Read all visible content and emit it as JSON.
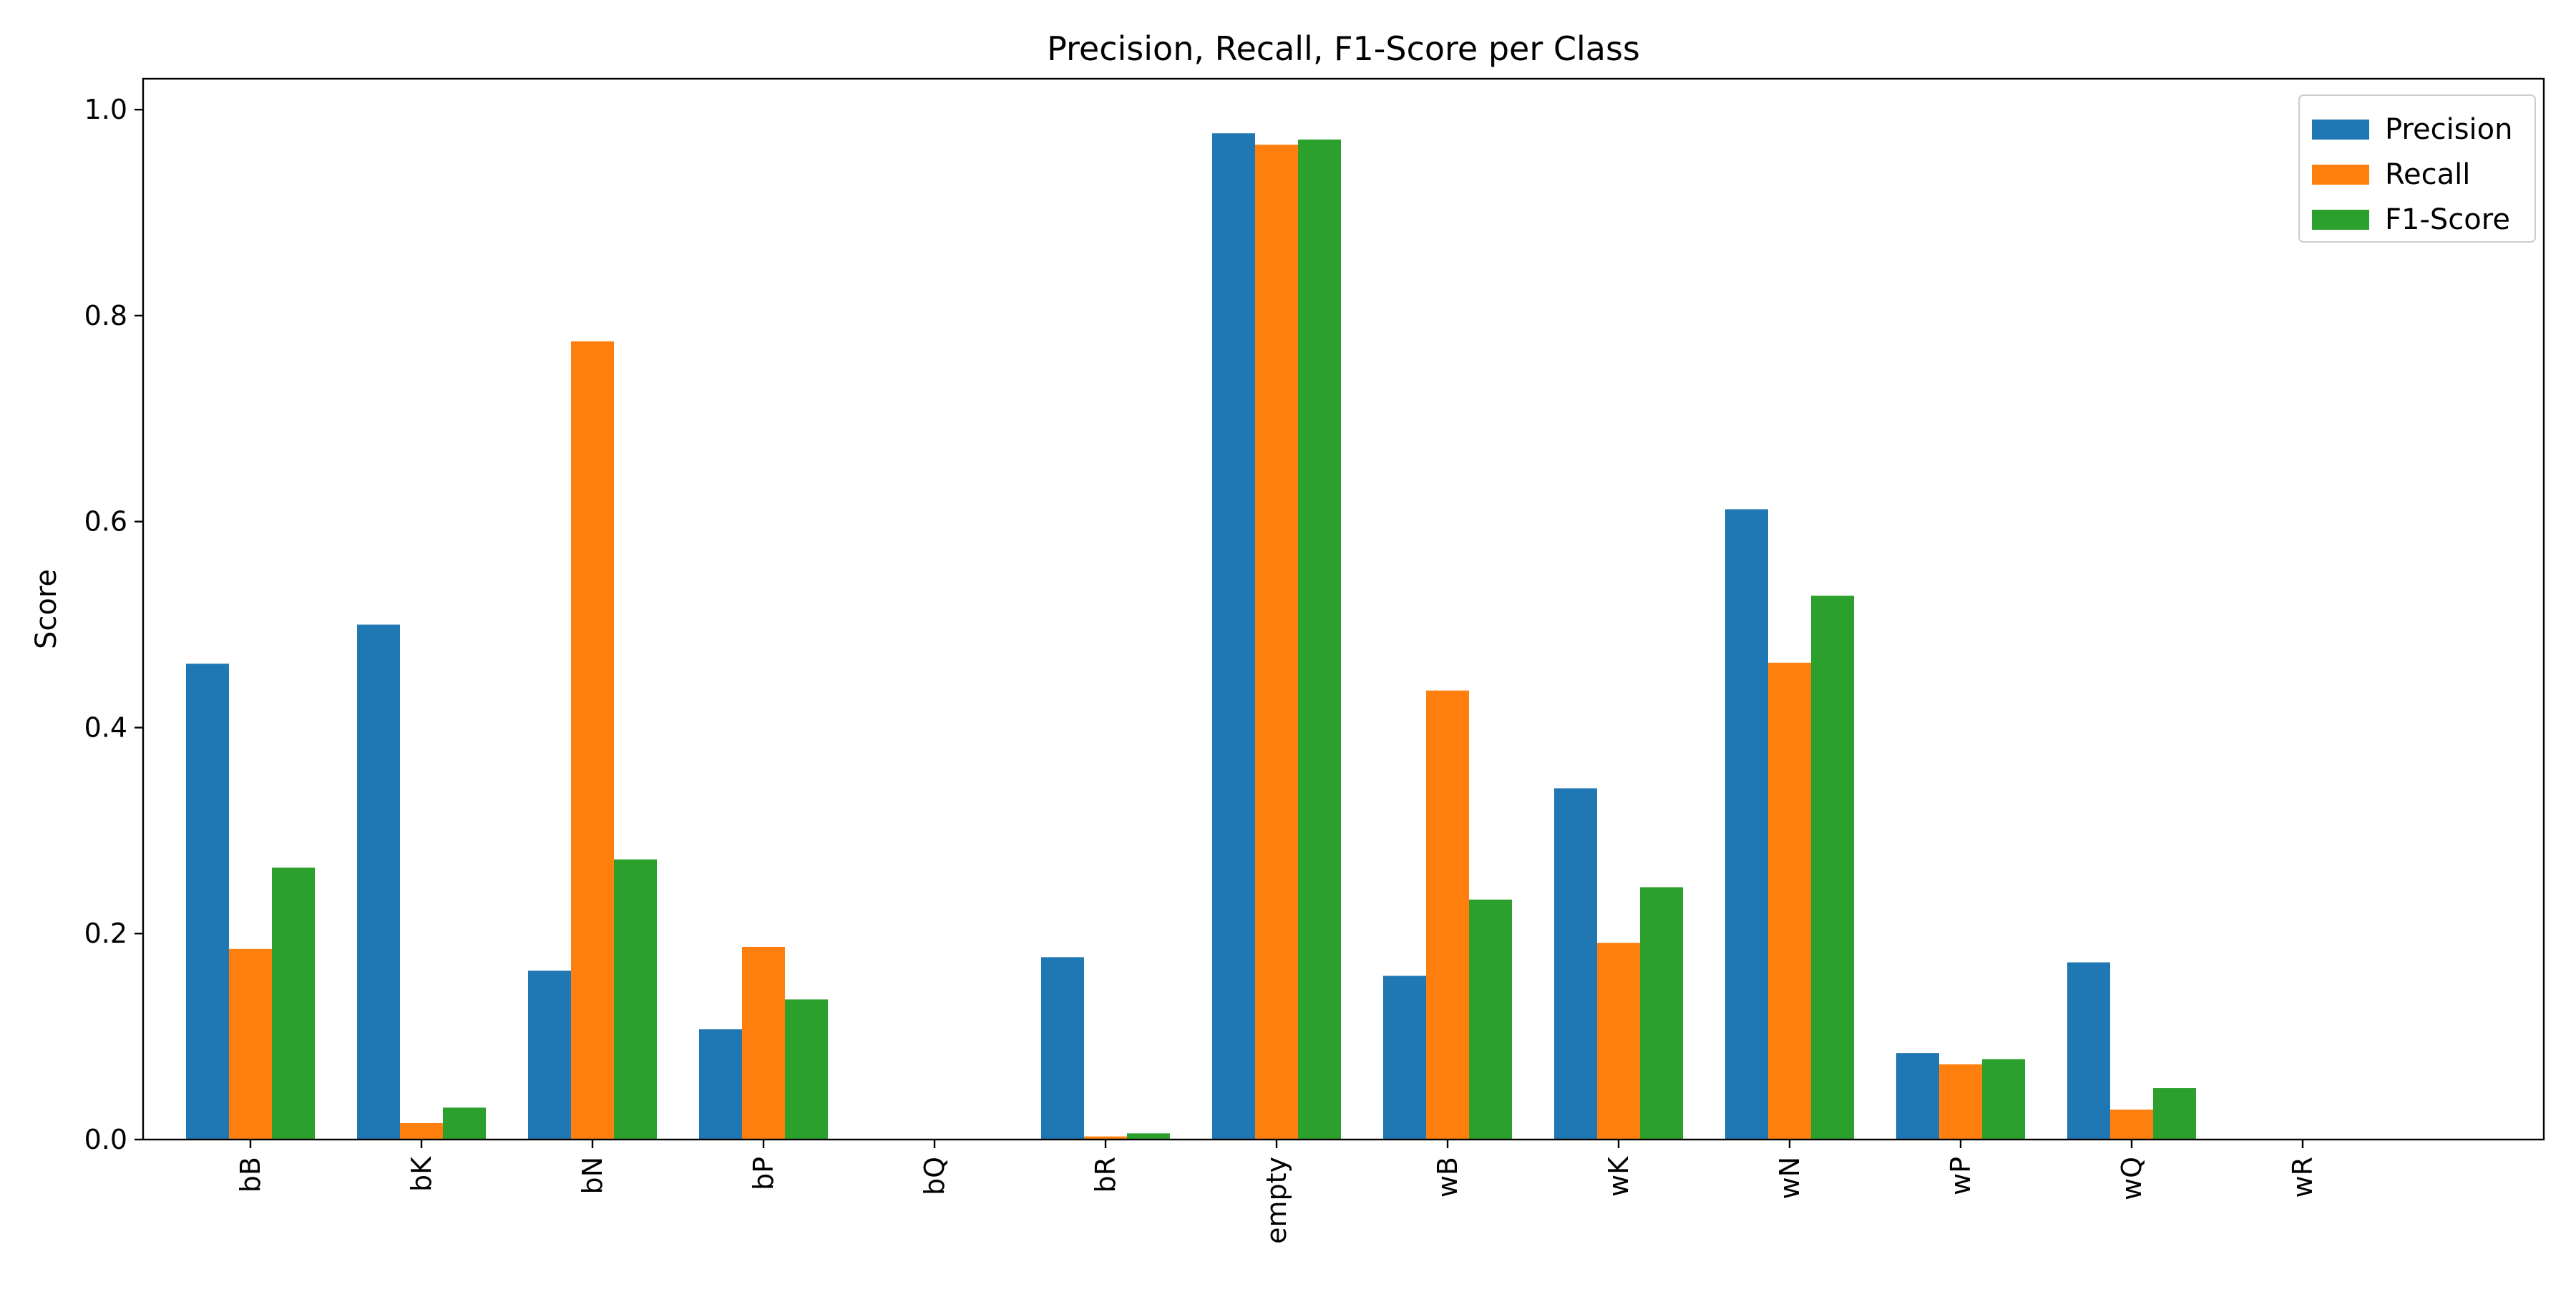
{
  "chart_data": {
    "type": "bar",
    "title": "Precision, Recall, F1-Score per Class",
    "xlabel": "",
    "ylabel": "Score",
    "categories": [
      "bB",
      "bK",
      "bN",
      "bP",
      "bQ",
      "bR",
      "empty",
      "wB",
      "wK",
      "wN",
      "wP",
      "wQ",
      "wR"
    ],
    "series": [
      {
        "name": "Precision",
        "color": "#1f77b4",
        "values": [
          0.462,
          0.5,
          0.164,
          0.107,
          0.0,
          0.177,
          0.977,
          0.159,
          0.341,
          0.612,
          0.084,
          0.172,
          0.0
        ]
      },
      {
        "name": "Recall",
        "color": "#ff7f0e",
        "values": [
          0.185,
          0.016,
          0.775,
          0.187,
          0.0,
          0.003,
          0.966,
          0.436,
          0.191,
          0.463,
          0.073,
          0.029,
          0.0
        ]
      },
      {
        "name": "F1-Score",
        "color": "#2ca02c",
        "values": [
          0.264,
          0.031,
          0.272,
          0.136,
          0.0,
          0.006,
          0.971,
          0.233,
          0.245,
          0.528,
          0.078,
          0.05,
          0.0
        ]
      }
    ],
    "ylim": [
      0.0,
      1.03
    ],
    "yticks": [
      "0.0",
      "0.2",
      "0.4",
      "0.6",
      "0.8",
      "1.0"
    ],
    "grid": false,
    "legend_position": "top-right"
  }
}
